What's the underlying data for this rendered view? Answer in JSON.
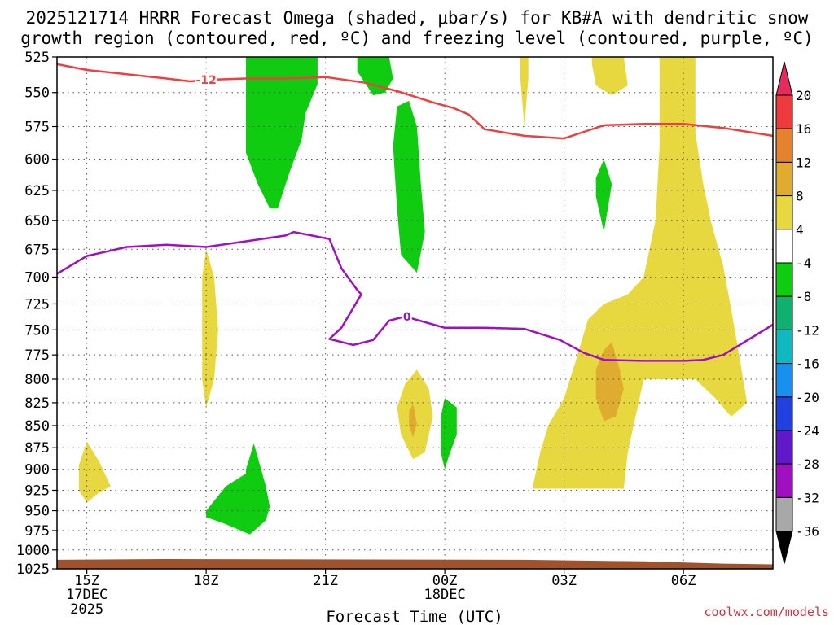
{
  "chart_data": {
    "type": "heatmap",
    "title": {
      "line1": "2025121714 HRRR Forecast Omega (shaded, μbar/s) for KB#A with dendritic snow",
      "line2": "growth region (contoured, red, ºC) and freezing level (contoured, purple, ºC)"
    },
    "xlabel": "Forecast Time (UTC)",
    "ylabel": "",
    "credit": "coolwx.com/models",
    "x_range_hours": [
      14.25,
      32.25
    ],
    "y_range_hpa": [
      525,
      1025
    ],
    "y_ticks": [
      "525",
      "550",
      "575",
      "600",
      "625",
      "650",
      "675",
      "700",
      "725",
      "750",
      "775",
      "800",
      "825",
      "850",
      "875",
      "900",
      "925",
      "950",
      "975",
      "1000",
      "1025"
    ],
    "x_ticks": [
      {
        "label": "15Z",
        "hour": 15,
        "sub1": "17DEC",
        "sub2": "2025"
      },
      {
        "label": "18Z",
        "hour": 18,
        "sub1": "",
        "sub2": ""
      },
      {
        "label": "21Z",
        "hour": 21,
        "sub1": "",
        "sub2": ""
      },
      {
        "label": "00Z",
        "hour": 24,
        "sub1": "18DEC",
        "sub2": ""
      },
      {
        "label": "03Z",
        "hour": 27,
        "sub1": "",
        "sub2": ""
      },
      {
        "label": "06Z",
        "hour": 30,
        "sub1": "",
        "sub2": ""
      }
    ],
    "colorbar": {
      "levels": [
        "20",
        "16",
        "12",
        "8",
        "4",
        "-4",
        "-8",
        "-12",
        "-16",
        "-20",
        "-24",
        "-28",
        "-32",
        "-36"
      ],
      "colors": [
        "#e8295c",
        "#ee3a3a",
        "#e4832b",
        "#e0ac30",
        "#e8d840",
        "#ffffff",
        "#10cc10",
        "#10b070",
        "#10b8c0",
        "#1890f0",
        "#2040e0",
        "#6018c8",
        "#a010c0",
        "#a8a8a8",
        "#000000"
      ]
    },
    "contours": {
      "dendritic_minus12C": {
        "label": "-12",
        "color": "#ee4040",
        "points": [
          [
            14.25,
            530
          ],
          [
            15,
            534
          ],
          [
            16,
            537
          ],
          [
            17,
            540
          ],
          [
            17.6,
            542
          ],
          [
            18,
            541
          ],
          [
            19,
            540
          ],
          [
            20,
            540
          ],
          [
            21,
            539
          ],
          [
            22,
            543
          ],
          [
            22.8,
            549
          ],
          [
            23.8,
            558
          ],
          [
            24.2,
            561
          ],
          [
            24.6,
            566
          ],
          [
            25,
            577
          ],
          [
            26,
            582
          ],
          [
            26.5,
            583
          ],
          [
            27,
            584
          ],
          [
            27.5,
            579
          ],
          [
            28,
            574
          ],
          [
            29,
            573
          ],
          [
            30,
            573
          ],
          [
            31,
            576
          ],
          [
            32.25,
            582
          ]
        ]
      },
      "freezing_0C": {
        "label": "0",
        "color": "#a010c0",
        "points": [
          [
            14.25,
            697
          ],
          [
            15,
            681
          ],
          [
            16,
            673
          ],
          [
            17,
            671
          ],
          [
            18,
            673
          ],
          [
            19,
            668
          ],
          [
            20,
            663
          ],
          [
            20.2,
            660
          ],
          [
            20.8,
            664
          ],
          [
            21.1,
            666
          ],
          [
            21.4,
            692
          ],
          [
            21.8,
            712
          ],
          [
            21.9,
            716
          ],
          [
            21.4,
            748
          ],
          [
            21.1,
            759
          ],
          [
            21.7,
            765
          ],
          [
            22.2,
            760
          ],
          [
            22.6,
            741
          ],
          [
            23.0,
            737
          ],
          [
            24,
            748
          ],
          [
            25,
            748
          ],
          [
            26,
            749
          ],
          [
            26.9,
            760
          ],
          [
            27.5,
            773
          ],
          [
            28,
            780
          ],
          [
            29,
            781
          ],
          [
            30,
            781
          ],
          [
            30.5,
            780
          ],
          [
            31,
            775
          ],
          [
            32.25,
            745
          ]
        ]
      }
    },
    "shaded_regions": [
      {
        "name": "green-20z",
        "color": "#10cc10",
        "points": [
          [
            19.0,
            525
          ],
          [
            20.8,
            525
          ],
          [
            20.8,
            544
          ],
          [
            20.5,
            565
          ],
          [
            20.4,
            585
          ],
          [
            20.1,
            610
          ],
          [
            19.8,
            640
          ],
          [
            19.6,
            640
          ],
          [
            19.3,
            620
          ],
          [
            19.0,
            595
          ],
          [
            19.0,
            560
          ]
        ]
      },
      {
        "name": "green-22z",
        "color": "#10cc10",
        "points": [
          [
            21.8,
            525
          ],
          [
            22.6,
            525
          ],
          [
            22.7,
            540
          ],
          [
            22.5,
            550
          ],
          [
            22.2,
            552
          ],
          [
            21.8,
            535
          ]
        ]
      },
      {
        "name": "green-23z",
        "color": "#10cc10",
        "points": [
          [
            22.8,
            560
          ],
          [
            23.1,
            556
          ],
          [
            23.3,
            575
          ],
          [
            23.4,
            620
          ],
          [
            23.5,
            660
          ],
          [
            23.3,
            696
          ],
          [
            22.9,
            680
          ],
          [
            22.8,
            640
          ],
          [
            22.7,
            590
          ]
        ]
      },
      {
        "name": "green-18z",
        "color": "#10cc10",
        "points": [
          [
            18.0,
            950
          ],
          [
            18.5,
            920
          ],
          [
            19.0,
            905
          ],
          [
            19.0,
            900
          ],
          [
            19.2,
            870
          ],
          [
            19.5,
            920
          ],
          [
            19.6,
            945
          ],
          [
            19.5,
            962
          ],
          [
            19.1,
            980
          ],
          [
            18.5,
            967
          ],
          [
            18.0,
            958
          ]
        ]
      },
      {
        "name": "green-00z",
        "color": "#10cc10",
        "points": [
          [
            24.0,
            820
          ],
          [
            24.3,
            830
          ],
          [
            24.3,
            860
          ],
          [
            24.1,
            885
          ],
          [
            24.0,
            900
          ],
          [
            23.9,
            880
          ],
          [
            23.9,
            840
          ]
        ]
      },
      {
        "name": "green-03z",
        "color": "#10cc10",
        "points": [
          [
            28.0,
            600
          ],
          [
            28.2,
            620
          ],
          [
            28.0,
            660
          ],
          [
            27.8,
            630
          ],
          [
            27.8,
            615
          ]
        ]
      },
      {
        "name": "yellow-15z",
        "color": "#e8d840",
        "points": [
          [
            14.8,
            895
          ],
          [
            15.0,
            868
          ],
          [
            15.3,
            890
          ],
          [
            15.5,
            910
          ],
          [
            15.6,
            920
          ],
          [
            15.3,
            928
          ],
          [
            15.0,
            940
          ],
          [
            14.8,
            925
          ]
        ]
      },
      {
        "name": "yellow-18z",
        "color": "#e8d840",
        "points": [
          [
            18.0,
            675
          ],
          [
            18.2,
            700
          ],
          [
            18.3,
            750
          ],
          [
            18.2,
            800
          ],
          [
            18.0,
            830
          ],
          [
            17.9,
            800
          ],
          [
            17.9,
            750
          ],
          [
            17.9,
            700
          ]
        ]
      },
      {
        "name": "yellow-2330z",
        "color": "#e8d840",
        "points": [
          [
            23.3,
            790
          ],
          [
            23.6,
            810
          ],
          [
            23.7,
            840
          ],
          [
            23.5,
            880
          ],
          [
            23.2,
            888
          ],
          [
            22.9,
            860
          ],
          [
            22.8,
            830
          ],
          [
            23.0,
            805
          ]
        ]
      },
      {
        "name": "yellow-02z",
        "color": "#e8d840",
        "points": [
          [
            25.9,
            525
          ],
          [
            26.1,
            525
          ],
          [
            26.1,
            540
          ],
          [
            26.0,
            575
          ],
          [
            25.9,
            540
          ]
        ]
      },
      {
        "name": "yellow-04z",
        "color": "#e8d840",
        "points": [
          [
            27.7,
            525
          ],
          [
            28.5,
            525
          ],
          [
            28.6,
            545
          ],
          [
            28.2,
            552
          ],
          [
            27.8,
            545
          ],
          [
            27.7,
            530
          ]
        ]
      },
      {
        "name": "yellow-large-06z",
        "color": "#e8d840",
        "points": [
          [
            29.4,
            525
          ],
          [
            30.3,
            525
          ],
          [
            30.3,
            580
          ],
          [
            30.5,
            620
          ],
          [
            30.7,
            652
          ],
          [
            31.0,
            690
          ],
          [
            31.2,
            730
          ],
          [
            31.4,
            775
          ],
          [
            31.5,
            800
          ],
          [
            31.6,
            825
          ],
          [
            31.2,
            840
          ],
          [
            30.8,
            820
          ],
          [
            30.3,
            800
          ],
          [
            29.5,
            800
          ],
          [
            29.0,
            800
          ],
          [
            28.6,
            880
          ],
          [
            28.5,
            923
          ],
          [
            27.0,
            923
          ],
          [
            26.2,
            923
          ],
          [
            26.4,
            880
          ],
          [
            26.6,
            850
          ],
          [
            27.0,
            820
          ],
          [
            27.3,
            780
          ],
          [
            27.6,
            740
          ],
          [
            28.0,
            725
          ],
          [
            28.6,
            716
          ],
          [
            29.0,
            700
          ],
          [
            29.3,
            650
          ],
          [
            29.4,
            590
          ]
        ]
      },
      {
        "name": "orange-2330z",
        "color": "#e0ac30",
        "points": [
          [
            23.2,
            826
          ],
          [
            23.3,
            848
          ],
          [
            23.2,
            863
          ],
          [
            23.1,
            850
          ],
          [
            23.1,
            835
          ]
        ]
      },
      {
        "name": "orange-04z",
        "color": "#e0ac30",
        "points": [
          [
            28.0,
            770
          ],
          [
            28.2,
            762
          ],
          [
            28.4,
            790
          ],
          [
            28.5,
            810
          ],
          [
            28.3,
            840
          ],
          [
            28.0,
            845
          ],
          [
            27.8,
            820
          ],
          [
            27.8,
            790
          ]
        ]
      }
    ]
  }
}
